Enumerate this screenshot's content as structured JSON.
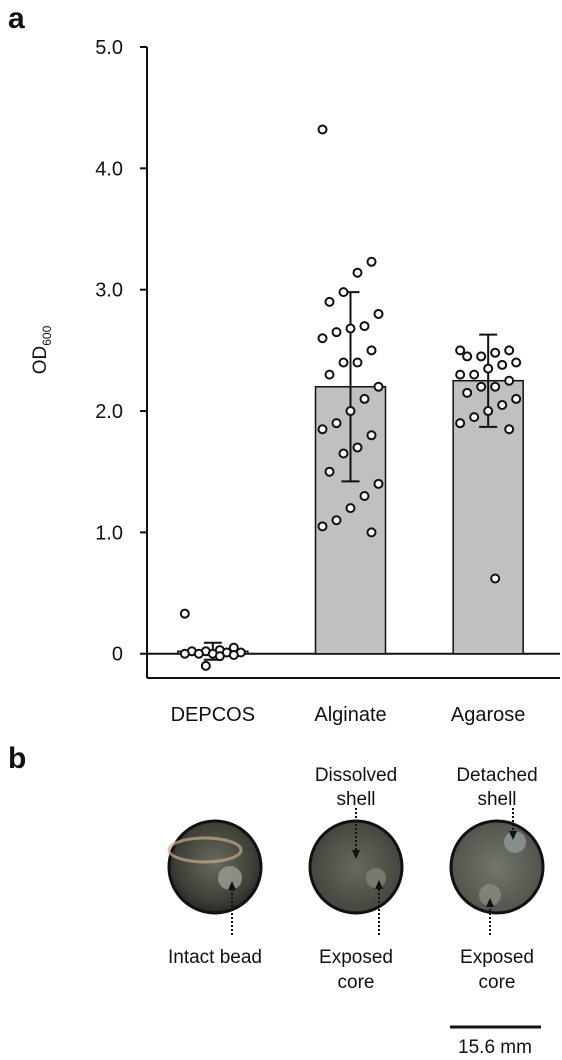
{
  "chart_data": {
    "type": "bar",
    "panel_label": "a",
    "y_label": "OD",
    "y_label_sub": "600",
    "categories": [
      "DEPCOS",
      "Alginate",
      "Agarose"
    ],
    "values": [
      0.02,
      2.2,
      2.25
    ],
    "errors": [
      0.07,
      0.78,
      0.38
    ],
    "points": [
      [
        0.33,
        0.05,
        0.03,
        0.02,
        0.02,
        0.01,
        0.01,
        0.0,
        0.0,
        0.0,
        -0.01,
        -0.02,
        -0.1
      ],
      [
        4.32,
        3.23,
        3.14,
        2.98,
        2.9,
        2.8,
        2.7,
        2.68,
        2.65,
        2.6,
        2.5,
        2.4,
        2.4,
        2.3,
        2.2,
        2.1,
        2.0,
        1.9,
        1.85,
        1.8,
        1.7,
        1.65,
        1.5,
        1.4,
        1.3,
        1.2,
        1.1,
        1.05,
        1.0
      ],
      [
        2.5,
        2.5,
        2.48,
        2.45,
        2.45,
        2.4,
        2.38,
        2.35,
        2.3,
        2.3,
        2.25,
        2.2,
        2.2,
        2.15,
        2.1,
        2.05,
        2.0,
        1.95,
        1.9,
        1.85,
        0.62
      ]
    ],
    "color": "#c0c0c0",
    "ylim": [
      -0.2,
      5.0
    ],
    "yticks": [
      0,
      {
        "value": 1,
        "label": "1.0"
      },
      {
        "value": 2,
        "label": "2.0"
      },
      {
        "value": 3,
        "label": "3.0"
      },
      {
        "value": 4,
        "label": "4.0"
      },
      {
        "value": 5,
        "label": "5.0"
      }
    ]
  },
  "panel_b": {
    "panel_label": "b",
    "top_labels": [
      [
        "Dissolved",
        "shell"
      ],
      [
        "Detached",
        "shell"
      ]
    ],
    "bottom_labels": [
      [
        "Intact bead"
      ],
      [
        "Exposed",
        "core"
      ],
      [
        "Exposed",
        "core"
      ]
    ],
    "scale_bar": "15.6 mm"
  }
}
